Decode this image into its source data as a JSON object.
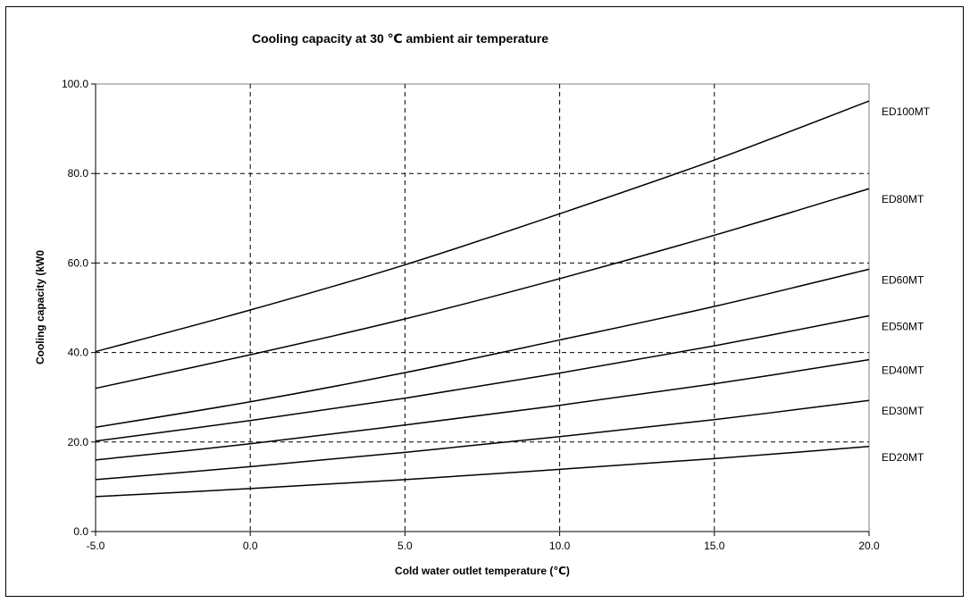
{
  "chart_data": {
    "type": "line",
    "title": "Cooling capacity at 30 ℃ ambient air temperature",
    "xlabel": "Cold water outlet temperature (℃)",
    "ylabel": "Cooling capacity (kW0",
    "xlim": [
      -5,
      20
    ],
    "ylim": [
      0,
      100
    ],
    "x_ticks": [
      "-5.0",
      "0.0",
      "5.0",
      "10.0",
      "15.0",
      "20.0"
    ],
    "y_ticks": [
      "0.0",
      "20.0",
      "40.0",
      "60.0",
      "80.0",
      "100.0"
    ],
    "grid": true,
    "line_color": "#000000",
    "x": [
      -5,
      0,
      5,
      10,
      15,
      20
    ],
    "series": [
      {
        "name": "ED100MT",
        "values": [
          40.2,
          49.5,
          59.6,
          71.0,
          83.0,
          96.2
        ]
      },
      {
        "name": "ED80MT",
        "values": [
          32.0,
          39.5,
          47.5,
          56.5,
          66.2,
          76.6
        ]
      },
      {
        "name": "ED60MT",
        "values": [
          23.3,
          29.0,
          35.5,
          42.8,
          50.3,
          58.6
        ]
      },
      {
        "name": "ED50MT",
        "values": [
          20.2,
          24.8,
          29.8,
          35.4,
          41.5,
          48.2
        ]
      },
      {
        "name": "ED40MT",
        "values": [
          16.0,
          19.6,
          23.8,
          28.2,
          33.0,
          38.4
        ]
      },
      {
        "name": "ED30MT",
        "values": [
          11.6,
          14.5,
          17.7,
          21.2,
          25.0,
          29.3
        ]
      },
      {
        "name": "ED20MT",
        "values": [
          7.8,
          9.6,
          11.6,
          13.9,
          16.3,
          19.0
        ]
      }
    ]
  }
}
